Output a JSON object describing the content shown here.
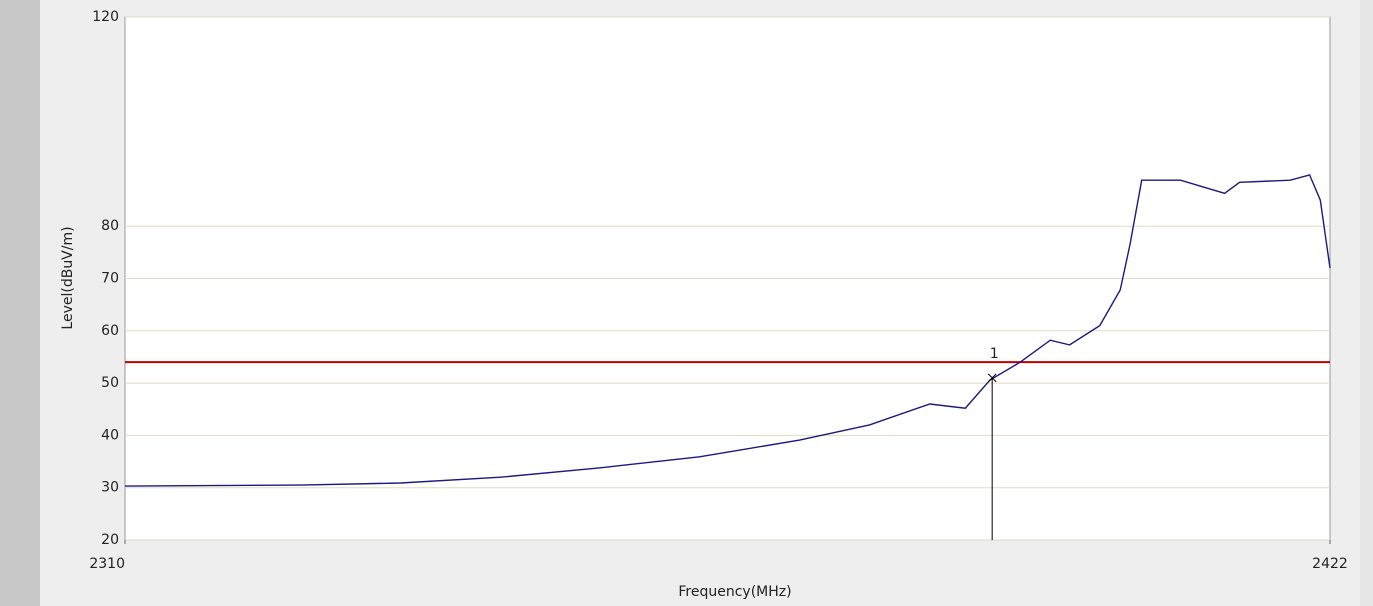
{
  "chart_data": {
    "type": "line",
    "xlabel": "Frequency(MHz)",
    "ylabel": "Level(dBuV/m)",
    "x": [
      2310,
      2318,
      2326.3,
      2335.6,
      2344.9,
      2354.2,
      2363.4,
      2372.7,
      2379.2,
      2384.8,
      2388.1,
      2390.4,
      2393.2,
      2396.0,
      2397.8,
      2400.6,
      2402.5,
      2403.4,
      2404.5,
      2408.1,
      2412.2,
      2413.6,
      2418.3,
      2420.1,
      2421.1,
      2422
    ],
    "series": [
      {
        "name": "Level",
        "color": "#1a1a80",
        "values": [
          30.3,
          30.4,
          30.5,
          30.9,
          32,
          33.8,
          35.9,
          39.1,
          42,
          46,
          45.2,
          50.6,
          54,
          58.2,
          57.3,
          61,
          67.8,
          76.4,
          88.8,
          88.8,
          86.3,
          88.4,
          88.8,
          89.8,
          85,
          72
        ]
      }
    ],
    "xlim": [
      2310,
      2422
    ],
    "xticks": [
      2310,
      2422
    ],
    "ylim": [
      20,
      120
    ],
    "yticks": [
      20,
      30,
      40,
      50,
      60,
      70,
      80,
      120
    ],
    "grid": true,
    "limit_line": {
      "value": 54,
      "color": "#c00000"
    },
    "markers": [
      {
        "label": "1",
        "x": 2390.6,
        "y": 51
      }
    ]
  }
}
